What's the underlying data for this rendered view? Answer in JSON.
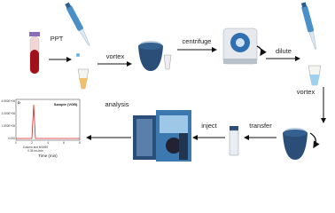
{
  "steps": [
    "PPT",
    "vortex",
    "centrifuge",
    "dilute",
    "vortex",
    "transfer",
    "inject",
    "analysis"
  ],
  "inset": {
    "panel": "D",
    "sample": "Sample (VGB)",
    "yticks": [
      "4.500E+06",
      "3.000E+06",
      "1.500E+06",
      "0.000"
    ],
    "xticks": [
      "0",
      "2",
      "4",
      "6",
      "8"
    ],
    "xlabel": "Time (min)",
    "notes": [
      "Column and MS/MS",
      "0.35 mL/min"
    ]
  }
}
